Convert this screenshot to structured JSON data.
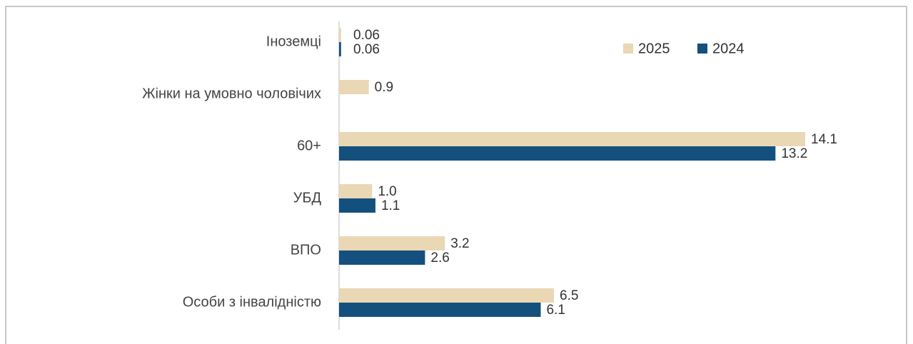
{
  "chart_data": {
    "type": "hbar",
    "categories": [
      "Іноземці",
      "Жінки на умовно чоловічих",
      "60+",
      "УБД",
      "ВПО",
      "Особи з інвалідністю"
    ],
    "series": [
      {
        "name": "2025",
        "color": "#ead7b4",
        "values": [
          0.06,
          0.9,
          14.1,
          1,
          3.2,
          6.5
        ],
        "value_labels": [
          "0.06",
          "0.9",
          "14.1",
          "1.0",
          "3.2",
          "6.5"
        ]
      },
      {
        "name": "2024",
        "color": "#14507e",
        "values": [
          0.06,
          null,
          13.2,
          1.1,
          2.6,
          6.1
        ],
        "value_labels": [
          "0.06",
          null,
          "13.2",
          "1.1",
          "2.6",
          "6.1"
        ]
      }
    ],
    "xlim": [
      0,
      16
    ],
    "legend": "top-right"
  }
}
